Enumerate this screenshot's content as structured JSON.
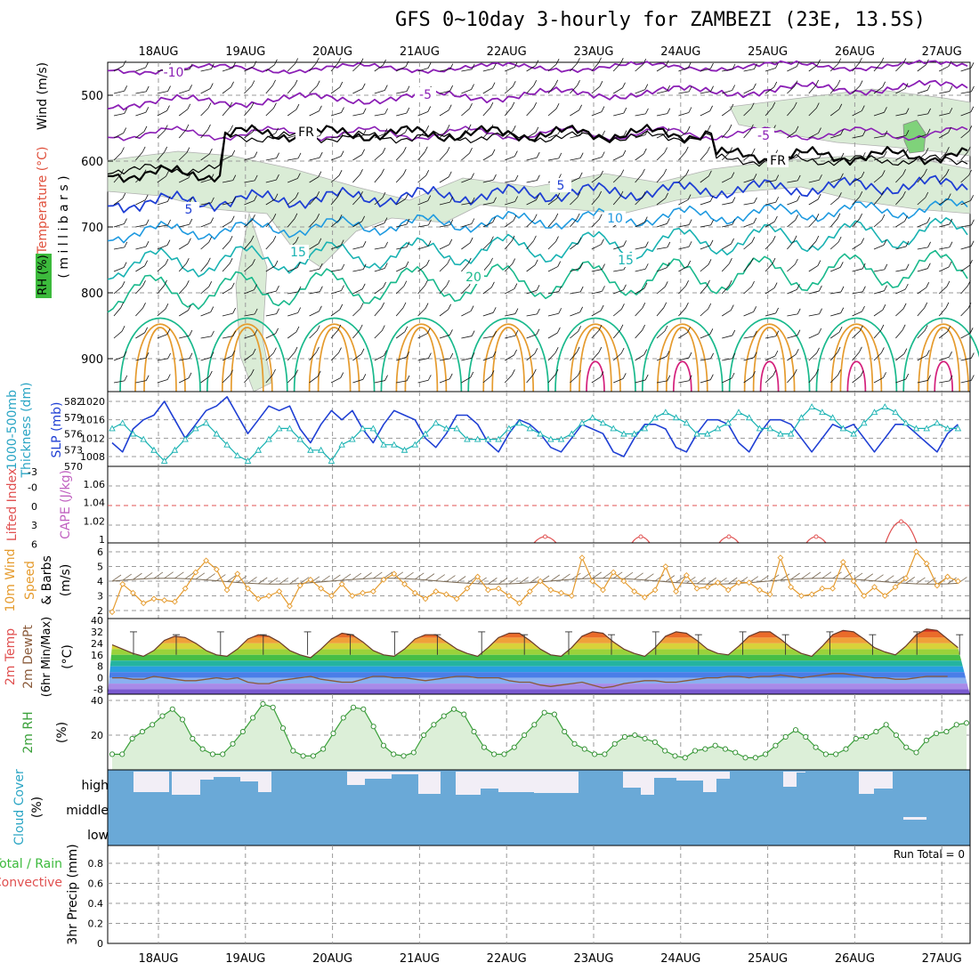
{
  "title": "GFS 0~10day 3-hourly for ZAMBEZI (23E, 13.5S)",
  "dates": [
    "18AUG",
    "19AUG",
    "20AUG",
    "21AUG",
    "22AUG",
    "23AUG",
    "24AUG",
    "25AUG",
    "26AUG",
    "27AUG"
  ],
  "colors": {
    "purple": "#8b1fb5",
    "blue": "#1f3fd4",
    "lightblue": "#1f9ae0",
    "teal": "#19b2b2",
    "green": "#19b98c",
    "orange": "#e59b2e",
    "magenta": "#d4207c",
    "frz": "#000000",
    "rh": "#b9d9b5"
  },
  "chart_data": [
    {
      "type": "contour",
      "id": "cross-section",
      "ylabel_parts": [
        {
          "text": "Wind (m/s)",
          "color": "#000000"
        },
        {
          "text": "Temperature (°C)",
          "color": "#e0503c"
        },
        {
          "text": "RH (%)",
          "color": "#000000"
        }
      ],
      "yaxis_label": "( m i l l i b a r s )",
      "ylim": [
        950,
        450
      ],
      "yticks": [
        500,
        600,
        700,
        800,
        900
      ],
      "contour_labels": [
        "-10",
        "-5",
        "-5",
        "FR",
        "FR",
        "5",
        "5",
        "10",
        "15",
        "15",
        "20"
      ]
    },
    {
      "type": "line",
      "id": "thickness-slp",
      "ylabel_left": "Thickness (dm)",
      "ylabel_left2": "1000-500mb",
      "ylabel_right": "SLP (mb)",
      "yticks_left": [
        "582",
        "579",
        "576",
        "573",
        "570"
      ],
      "yticks_right": [
        "1020",
        "1016",
        "1012",
        "1008"
      ],
      "series": [
        {
          "name": "SLP (mb)",
          "color": "#1f3fd4",
          "values": [
            1011,
            1009,
            1014,
            1016,
            1017,
            1020,
            1016,
            1012,
            1015,
            1018,
            1019,
            1021,
            1017,
            1013,
            1016,
            1019,
            1018,
            1019,
            1014,
            1011,
            1015,
            1018,
            1016,
            1018,
            1014,
            1011,
            1015,
            1018,
            1017,
            1016,
            1012,
            1010,
            1013,
            1017,
            1017,
            1015,
            1011,
            1009,
            1013,
            1016,
            1015,
            1013,
            1010,
            1009,
            1012,
            1015,
            1014,
            1013,
            1009,
            1008,
            1012,
            1015,
            1015,
            1014,
            1010,
            1009,
            1013,
            1016,
            1016,
            1015,
            1011,
            1009,
            1013,
            1016,
            1016,
            1015,
            1012,
            1009,
            1012,
            1015,
            1014,
            1015,
            1012,
            1009,
            1012,
            1015,
            1015,
            1013,
            1011,
            1009,
            1013,
            1015
          ]
        },
        {
          "name": "Thickness (dm)",
          "color": "#19b2b2",
          "values": [
            577,
            578,
            576,
            575,
            573,
            571,
            573,
            575,
            577,
            578,
            576,
            574,
            572,
            571,
            573,
            575,
            577,
            577,
            575,
            573,
            573,
            571,
            574,
            575,
            577,
            577,
            574,
            574,
            573,
            574,
            576,
            578,
            577,
            577,
            575,
            575,
            575,
            575,
            577,
            578,
            577,
            576,
            575,
            575,
            576,
            578,
            579,
            578,
            577,
            576,
            576,
            577,
            579,
            580,
            579,
            578,
            576,
            576,
            577,
            578,
            580,
            579,
            577,
            577,
            576,
            576,
            579,
            581,
            580,
            579,
            577,
            576,
            578,
            580,
            581,
            580,
            578,
            577,
            577,
            578,
            577,
            577
          ]
        }
      ]
    },
    {
      "type": "line",
      "id": "lifted-cape",
      "ylabel_left": "Lifted Index",
      "ylabel_right": "CAPE (J/kg)",
      "yticks_left": [
        "-3",
        "-0",
        "0",
        "3",
        "6"
      ],
      "yticks_right": [
        "1.06",
        "1.04",
        "1.02",
        "1"
      ]
    },
    {
      "type": "line",
      "id": "wind10m",
      "ylabel": "10m Wind Speed & Barbs (m/s)",
      "ylim": [
        1.5,
        6.5
      ],
      "yticks": [
        2,
        3,
        4,
        5,
        6
      ],
      "series": [
        {
          "name": "Speed",
          "color": "#e59b2e",
          "values": [
            1.9,
            3.8,
            3.2,
            2.5,
            2.8,
            2.7,
            2.6,
            3.5,
            4.6,
            5.4,
            4.8,
            3.4,
            4.5,
            3.5,
            2.8,
            3.0,
            3.3,
            2.3,
            3.7,
            4.1,
            3.5,
            3.0,
            3.8,
            3.0,
            3.2,
            3.3,
            4.1,
            4.5,
            3.8,
            3.2,
            2.8,
            3.3,
            3.1,
            2.8,
            3.5,
            4.3,
            3.4,
            3.5,
            3.0,
            2.5,
            3.3,
            4.0,
            3.4,
            3.2,
            3.0,
            5.6,
            4.0,
            3.4,
            4.6,
            4.0,
            3.3,
            2.9,
            3.4,
            5.0,
            3.3,
            4.4,
            3.5,
            3.6,
            3.9,
            3.4,
            3.9,
            3.9,
            3.4,
            3.1,
            5.6,
            3.6,
            3.0,
            3.1,
            3.5,
            3.5,
            5.3,
            4.0,
            3.0,
            3.6,
            3.0,
            3.6,
            4.2,
            6.0,
            5.2,
            3.7,
            4.3,
            4.0
          ]
        }
      ]
    },
    {
      "type": "area",
      "id": "temp2m",
      "ylabel": "2m Temp 2m DewPt (6hr Min/Max) (°C)",
      "ylim": [
        -12,
        40
      ],
      "yticks": [
        40,
        32,
        24,
        16,
        8,
        0,
        -8
      ],
      "series": [
        {
          "name": "Temp",
          "values": [
            23,
            20,
            17,
            15,
            19,
            26,
            29,
            28,
            24,
            19,
            16,
            15,
            20,
            27,
            30,
            29,
            25,
            19,
            16,
            14,
            20,
            27,
            31,
            30,
            25,
            19,
            16,
            15,
            20,
            27,
            30,
            30,
            25,
            20,
            17,
            15,
            21,
            28,
            31,
            31,
            26,
            20,
            16,
            15,
            21,
            29,
            32,
            31,
            25,
            20,
            17,
            15,
            21,
            29,
            32,
            31,
            26,
            20,
            17,
            16,
            22,
            29,
            32,
            32,
            27,
            21,
            17,
            15,
            22,
            30,
            33,
            32,
            27,
            21,
            18,
            16,
            22,
            30,
            34,
            33,
            27,
            21
          ]
        },
        {
          "name": "DewPt",
          "values": [
            0,
            0,
            -1,
            -1,
            1,
            0,
            -1,
            -2,
            -2,
            -1,
            0,
            -1,
            0,
            -3,
            -4,
            -4,
            -2,
            -1,
            0,
            1,
            -1,
            -2,
            -3,
            -3,
            -1,
            1,
            1,
            0,
            0,
            -1,
            -2,
            -1,
            0,
            1,
            1,
            0,
            0,
            0,
            -2,
            -3,
            -3,
            -5,
            -6,
            -5,
            -4,
            -3,
            -5,
            -7,
            -6,
            -4,
            -3,
            -2,
            -2,
            -3,
            -3,
            -2,
            -1,
            0,
            0,
            1,
            1,
            0,
            1,
            1,
            2,
            1,
            0,
            1,
            2,
            3,
            3,
            2,
            1,
            0,
            0,
            -1,
            -1,
            0,
            1,
            1,
            1
          ]
        }
      ]
    },
    {
      "type": "area",
      "id": "rh2m",
      "ylabel": "2m RH (%)",
      "ylim": [
        0,
        42
      ],
      "yticks": [
        20,
        40
      ],
      "series": [
        {
          "name": "RH",
          "values": [
            9,
            9,
            18,
            22,
            26,
            31,
            35,
            29,
            18,
            12,
            9,
            9,
            15,
            22,
            30,
            38,
            36,
            24,
            11,
            8,
            8,
            12,
            21,
            30,
            36,
            35,
            25,
            14,
            9,
            8,
            10,
            20,
            26,
            31,
            35,
            32,
            22,
            13,
            9,
            9,
            13,
            20,
            26,
            33,
            32,
            22,
            15,
            12,
            9,
            9,
            15,
            19,
            20,
            18,
            16,
            11,
            8,
            7,
            11,
            12,
            14,
            12,
            10,
            7,
            7,
            9,
            14,
            19,
            23,
            19,
            13,
            9,
            9,
            12,
            18,
            19,
            22,
            26,
            20,
            13,
            10,
            17,
            21,
            22,
            26,
            27
          ]
        }
      ]
    },
    {
      "type": "heatmap",
      "id": "cloud-cover",
      "ylabel": "Cloud Cover (%)",
      "levels": [
        "high",
        "middle",
        "low"
      ]
    },
    {
      "type": "bar",
      "id": "precip",
      "ylabel_left": "Total / Rain",
      "ylabel_left2": "Convective",
      "ylabel": "3hr Precip (mm)",
      "ylim": [
        0,
        1
      ],
      "yticks": [
        0,
        0.2,
        0.4,
        0.6,
        0.8
      ],
      "run_total": "Run Total = 0",
      "values": []
    }
  ]
}
